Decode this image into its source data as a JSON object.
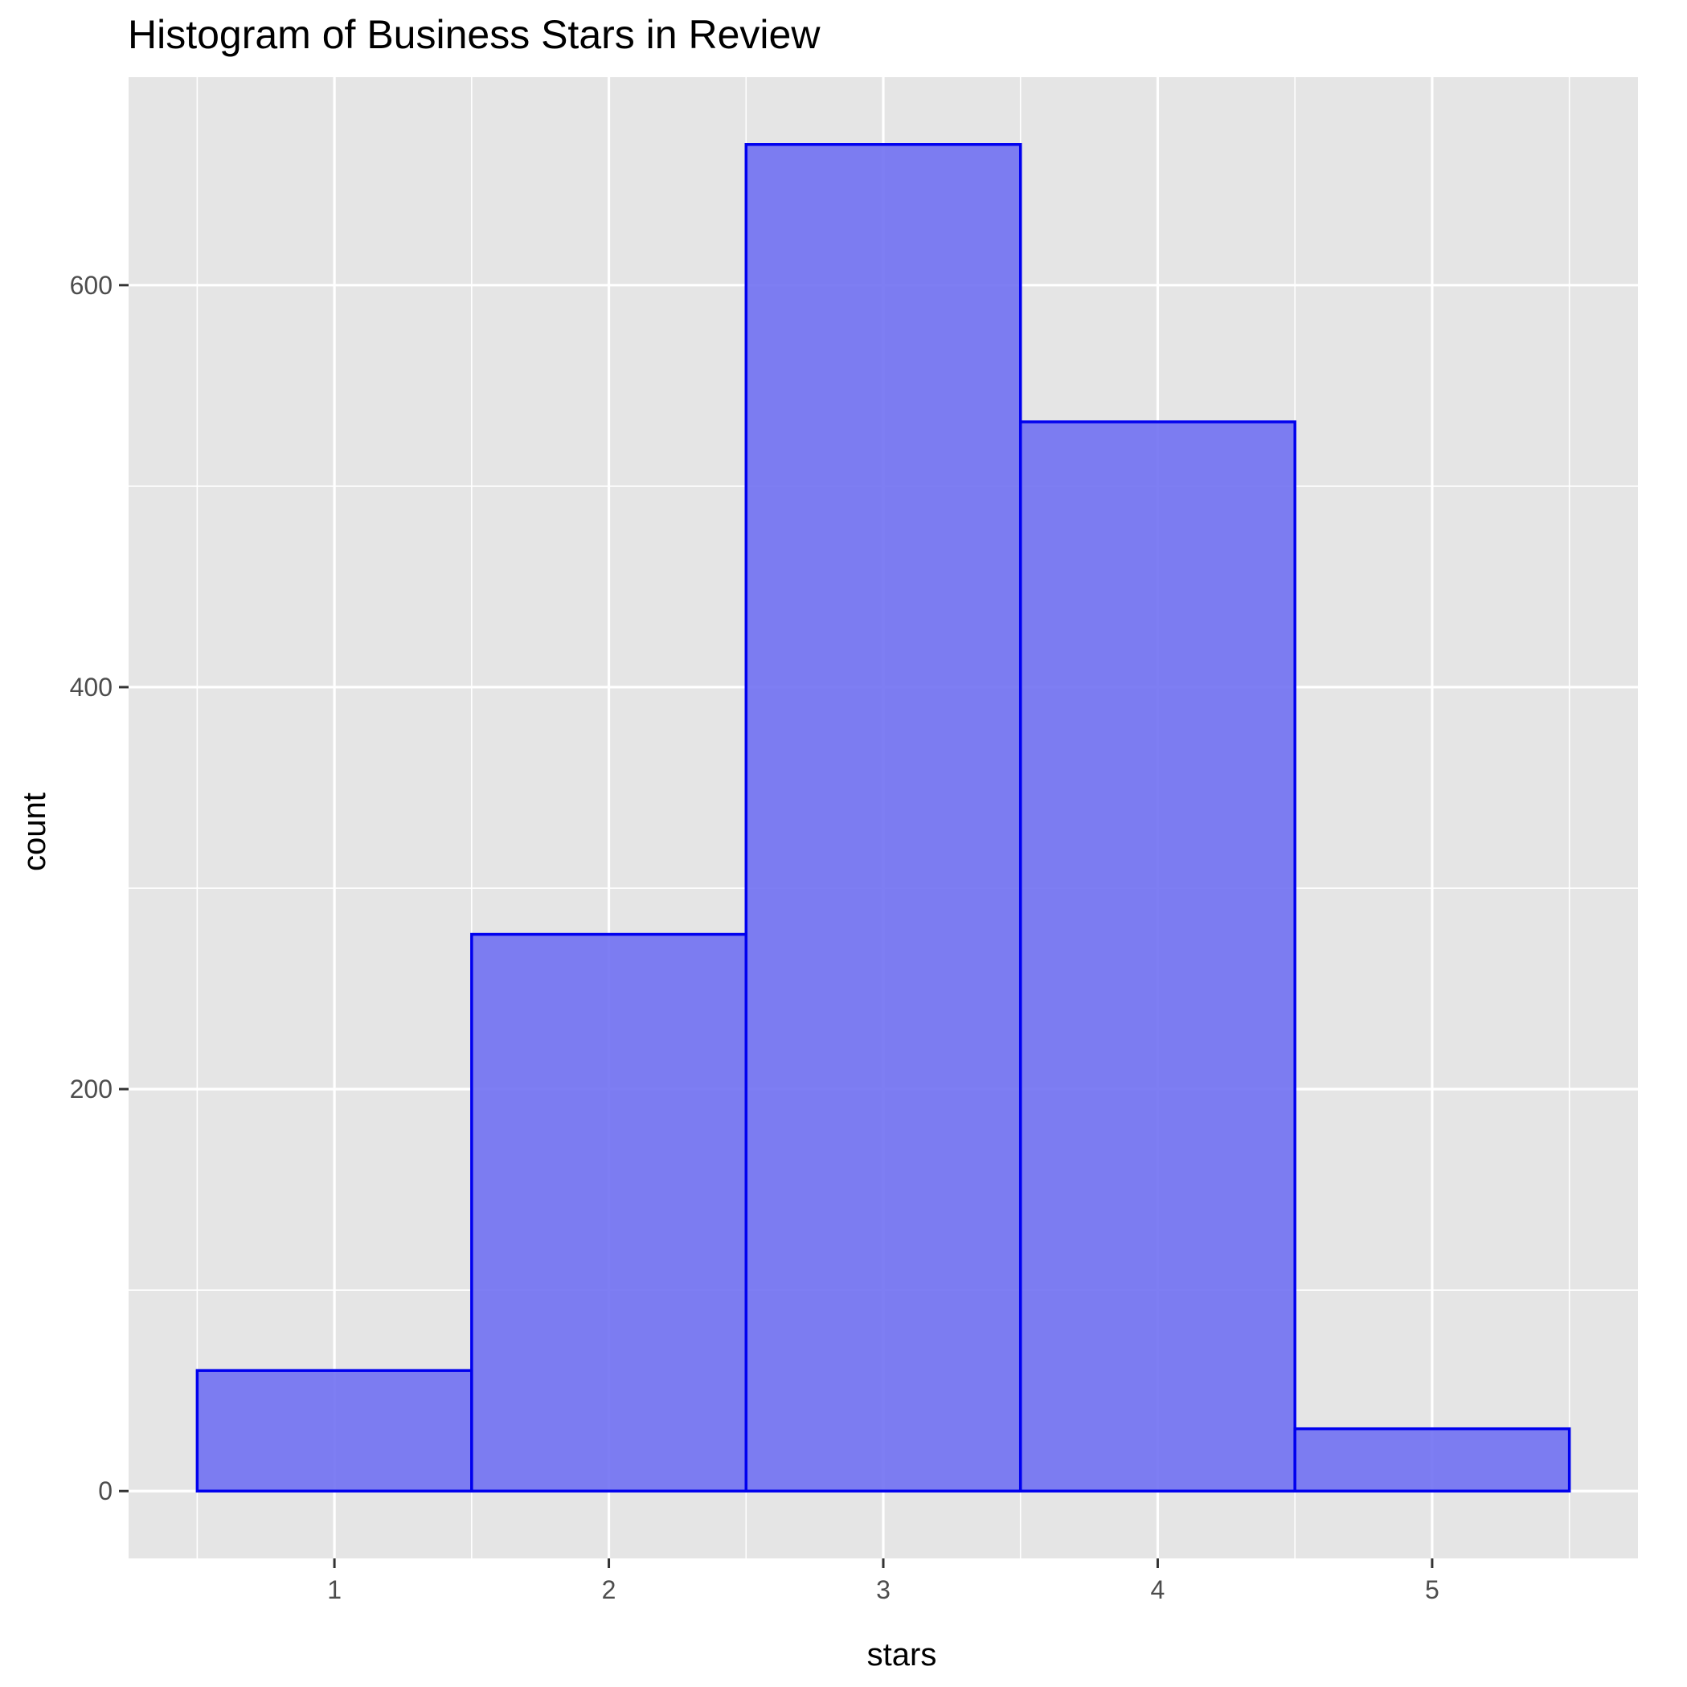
{
  "chart_data": {
    "type": "histogram",
    "title": "Histogram of Business Stars in Review",
    "xlabel": "stars",
    "ylabel": "count",
    "bins": [
      {
        "x": 1,
        "from": 0.5,
        "to": 1.5,
        "count": 60
      },
      {
        "x": 2,
        "from": 1.5,
        "to": 2.5,
        "count": 277
      },
      {
        "x": 3,
        "from": 2.5,
        "to": 3.5,
        "count": 670
      },
      {
        "x": 4,
        "from": 3.5,
        "to": 4.5,
        "count": 532
      },
      {
        "x": 5,
        "from": 4.5,
        "to": 5.5,
        "count": 31
      }
    ],
    "xlim": [
      0.25,
      5.75
    ],
    "ylim": [
      -33.5,
      703.5
    ],
    "x_ticks": [
      1,
      2,
      3,
      4,
      5
    ],
    "y_ticks": [
      0,
      200,
      400,
      600
    ],
    "y_minor_ticks": [
      100,
      300,
      500
    ],
    "x_minor_ticks": [
      1.5,
      2.5,
      3.5,
      4.5
    ],
    "grid": true,
    "legend": "none",
    "colors": {
      "panel_background": "#e5e5e5",
      "grid": "#ffffff",
      "bar_fill": "#7373f2",
      "bar_outline": "#0000ee"
    }
  }
}
